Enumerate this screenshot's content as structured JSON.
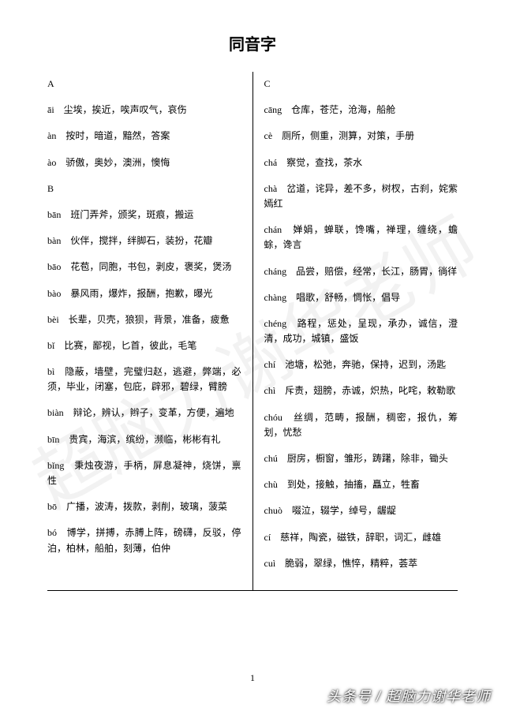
{
  "title": "同音字",
  "page_number": "1",
  "attribution": "头条号 / 超脑力谢华老师",
  "watermark": "超脑力谢华老师",
  "left": {
    "sections": [
      {
        "header": "A",
        "entries": [
          {
            "pinyin": "āi",
            "chars": "尘埃，挨近，唉声叹气，哀伤"
          },
          {
            "pinyin": "àn",
            "chars": "按时，暗道，黯然，答案"
          },
          {
            "pinyin": "ào",
            "chars": "骄傲，奥妙，澳洲，懊悔"
          }
        ]
      },
      {
        "header": "B",
        "entries": [
          {
            "pinyin": "bān",
            "chars": "班门弄斧，颁奖，斑痕，搬运"
          },
          {
            "pinyin": "bàn",
            "chars": "伙伴，搅拌，绊脚石，装扮，花瓣"
          },
          {
            "pinyin": "bāo",
            "chars": "花苞，同胞，书包，剥皮，褒奖，煲汤"
          },
          {
            "pinyin": "bào",
            "chars": "暴风雨，爆炸，报酬，抱歉，曝光"
          },
          {
            "pinyin": "bèi",
            "chars": "长辈，贝壳，狼狈，背景，准备，疲惫"
          },
          {
            "pinyin": "bǐ",
            "chars": "比赛，鄙视，匕首，彼此，毛笔"
          },
          {
            "pinyin": "bì",
            "chars": "隐蔽，墙壁，完璧归赵，逃避，弊端，必须，毕业，闭塞，包庇，辟邪，碧绿，臂膀"
          },
          {
            "pinyin": "biàn",
            "chars": "辩论，辨认，辫子，变革，方便，遍地"
          },
          {
            "pinyin": "bīn",
            "chars": "贵宾，海滨，缤纷，濒临，彬彬有礼"
          },
          {
            "pinyin": "bǐng",
            "chars": "秉烛夜游，手柄，屏息凝神，烧饼，禀性"
          },
          {
            "pinyin": "bō",
            "chars": "广播，波涛，拨款，剥削，玻璃，菠菜"
          },
          {
            "pinyin": "bó",
            "chars": "博学，拼搏，赤膊上阵，磅礴，反驳，停泊，柏林，船舶，刻薄，伯仲"
          }
        ]
      }
    ]
  },
  "right": {
    "sections": [
      {
        "header": "C",
        "entries": [
          {
            "pinyin": "cāng",
            "chars": "仓库，苍茫，沧海，船舱"
          },
          {
            "pinyin": "cè",
            "chars": "厕所，侧重，测算，对策，手册"
          },
          {
            "pinyin": "chá",
            "chars": "察觉，查找，茶水"
          },
          {
            "pinyin": "chà",
            "chars": "岔道，诧异，差不多，树杈，古刹，姹紫嫣红"
          },
          {
            "pinyin": "chán",
            "chars": "婵娟，蝉联，馋嘴，禅理，缠绕，蟾蜍，谗言"
          },
          {
            "pinyin": "cháng",
            "chars": "品尝，赔偿，经常，长江，肠胃，徜徉"
          },
          {
            "pinyin": "chàng",
            "chars": "唱歌，舒畅，惆怅，倡导"
          },
          {
            "pinyin": "chéng",
            "chars": "路程，惩处，呈现，承办，诚信，澄清，成功，城镇，盛饭"
          },
          {
            "pinyin": "chí",
            "chars": "池塘，松弛，奔驰，保持，迟到，汤匙"
          },
          {
            "pinyin": "chì",
            "chars": "斥责，翅膀，赤诚，炽热，叱咤，敕勒歌"
          },
          {
            "pinyin": "chóu",
            "chars": "丝绸，范畴，报酬，稠密，报仇，筹划，忧愁"
          },
          {
            "pinyin": "chú",
            "chars": "厨房，橱窗，雏形，踌躇，除非，锄头"
          },
          {
            "pinyin": "chù",
            "chars": "到处，接触，抽搐，矗立，牲畜"
          },
          {
            "pinyin": "chuò",
            "chars": "啜泣，辍学，绰号，龌龊"
          },
          {
            "pinyin": "cí",
            "chars": "慈祥，陶瓷，磁铁，辞职，词汇，雌雄"
          },
          {
            "pinyin": "cuì",
            "chars": "脆弱，翠绿，憔悴，精粹，荟萃"
          }
        ]
      }
    ]
  }
}
